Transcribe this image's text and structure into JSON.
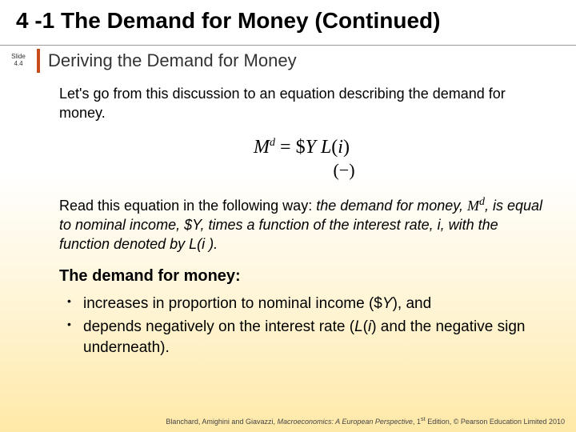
{
  "colors": {
    "accent_bar": "#c84d1a",
    "title_color": "#000000",
    "subtitle_color": "#333333",
    "bg_top": "#ffffff",
    "bg_bottom": "#ffe9a8"
  },
  "title": "4 -1  The Demand for Money (Continued)",
  "slide_label": {
    "line1": "Slide",
    "line2": "4.4"
  },
  "subtitle": "Deriving the Demand for Money",
  "intro": "Let's go from this discussion to an equation describing the demand for money.",
  "equation": {
    "lhs_var": "M",
    "lhs_sup": "d",
    "eq": " = ",
    "rhs_pre": "$",
    "rhs_Y": "Y",
    "rhs_sp": " ",
    "rhs_L": "L",
    "rhs_open": "(",
    "rhs_i": "i",
    "rhs_close": ")",
    "under": "(−)"
  },
  "read_para": {
    "p1": "Read this equation in the following way: ",
    "p2_ital": "the demand for money, ",
    "m_var": "M",
    "m_sup": "d",
    "p3_ital": ", is equal to nominal income, $Y, times a function of the interest rate, i, with the function denoted by L(i ).",
    "p3_ital_a": ", is equal to nominal income, ",
    "dollar": "$",
    "Y": "Y",
    "p3_ital_b": ", times a function of the interest rate, ",
    "i": "i",
    "p3_ital_c": ", with the function denoted by ",
    "L": "L",
    "openp": "(",
    "i2": "i ",
    "closep": ")",
    "dot": "."
  },
  "heading2": "The demand for money:",
  "bullets": {
    "b1_a": "increases in proportion to nominal income (",
    "b1_dollar": "$",
    "b1_Y": "Y",
    "b1_b": "), and",
    "b2_a": "depends negatively on the interest rate (",
    "b2_L": "L",
    "b2_open": "(",
    "b2_i": "i",
    "b2_close": ")",
    "b2_b": " and the negative sign underneath)."
  },
  "footer": {
    "authors": "Blanchard, Amighini and Giavazzi, ",
    "book": "Macroeconomics: A European Perspective",
    "rest": ", 1",
    "sup": "st",
    "tail": "  Edition, © Pearson Education Limited 2010"
  }
}
